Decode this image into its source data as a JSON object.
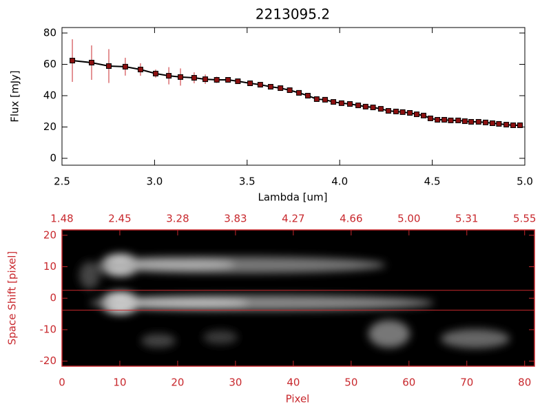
{
  "chart_data": [
    {
      "type": "errorbar",
      "title": "2213095.2",
      "xlabel": "Lambda [um]",
      "ylabel": "Flux [mJy]",
      "x": [
        2.556,
        2.66,
        2.753,
        2.842,
        2.924,
        3.006,
        3.077,
        3.14,
        3.214,
        3.274,
        3.336,
        3.397,
        3.45,
        3.516,
        3.571,
        3.627,
        3.68,
        3.73,
        3.78,
        3.828,
        3.876,
        3.921,
        3.966,
        4.01,
        4.055,
        4.1,
        4.14,
        4.18,
        4.222,
        4.263,
        4.304,
        4.34,
        4.379,
        4.416,
        4.453,
        4.49,
        4.528,
        4.565,
        4.6,
        4.64,
        4.676,
        4.71,
        4.75,
        4.788,
        4.825,
        4.86,
        4.9,
        4.937,
        4.974
      ],
      "values": [
        62.4,
        61.1,
        58.9,
        58.5,
        56.7,
        54.1,
        52.7,
        51.9,
        51.4,
        50.5,
        50.1,
        50.1,
        49.2,
        47.9,
        47.0,
        45.7,
        44.8,
        43.5,
        41.8,
        40.0,
        37.8,
        37.4,
        36.0,
        35.2,
        34.7,
        33.8,
        33.0,
        32.5,
        31.6,
        30.3,
        29.9,
        29.5,
        29.0,
        28.1,
        27.3,
        25.5,
        24.6,
        24.6,
        24.2,
        24.2,
        23.7,
        23.3,
        23.3,
        22.9,
        22.4,
        22.0,
        21.5,
        21.1,
        21.1
      ],
      "errors": [
        13.6,
        11,
        10.8,
        5.7,
        4,
        2.6,
        5.5,
        5.5,
        3.5,
        3,
        2,
        1,
        1,
        0.8,
        0.8,
        0.8,
        0.8,
        0.8,
        0.8,
        0.8,
        0.8,
        0.8,
        0.8,
        0.8,
        0.8,
        0.8,
        0.8,
        0.8,
        0.8,
        0.8,
        0.8,
        0.8,
        0.8,
        0.8,
        0.8,
        0.8,
        0.8,
        0.8,
        0.8,
        0.8,
        0.8,
        0.8,
        0.8,
        0.8,
        0.8,
        0.8,
        0.8,
        0.8,
        0.8
      ],
      "color": "#000000",
      "error_color": "#c8282d",
      "marker_color": "#8b1010",
      "xlim": [
        2.5,
        5.0
      ],
      "ylim": [
        -4.4,
        83.5
      ],
      "xticks": [
        2.5,
        {
          "value": 3.0,
          "label": "3.0"
        },
        3.5,
        {
          "value": 4.0,
          "label": "4.0"
        },
        4.5,
        {
          "value": 5.0,
          "label": "5.0"
        }
      ],
      "yticks": [
        0,
        20,
        40,
        60,
        80
      ]
    },
    {
      "type": "image",
      "xlabel": "Pixel",
      "ylabel": "Space Shift [pixel]",
      "color": "#c8282d",
      "xlim": [
        0,
        81.7
      ],
      "ylim": [
        -21.6,
        21.7
      ],
      "xticks": [
        0,
        10,
        20,
        30,
        40,
        50,
        60,
        70,
        80
      ],
      "x2ticks": [
        {
          "value": 0,
          "label": "1.48"
        },
        {
          "value": 10,
          "label": "2.45"
        },
        {
          "value": 20,
          "label": "3.28"
        },
        {
          "value": 30,
          "label": "3.83"
        },
        {
          "value": 40,
          "label": "4.27"
        },
        {
          "value": 50,
          "label": "4.66"
        },
        {
          "value": 60,
          "label": "5.00"
        },
        {
          "value": 70,
          "label": "5.31"
        },
        {
          "value": 80,
          "label": "5.55"
        }
      ],
      "yticks": [
        -20,
        -10,
        0,
        10,
        20
      ],
      "hlines": [
        2.5,
        -3.8
      ]
    }
  ]
}
